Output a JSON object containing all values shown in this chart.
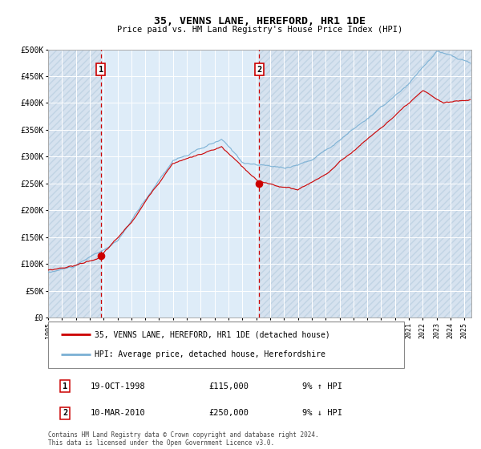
{
  "title": "35, VENNS LANE, HEREFORD, HR1 1DE",
  "subtitle": "Price paid vs. HM Land Registry's House Price Index (HPI)",
  "xmin_year": 1995.0,
  "xmax_year": 2025.5,
  "ymin": 0,
  "ymax": 500000,
  "yticks": [
    0,
    50000,
    100000,
    150000,
    200000,
    250000,
    300000,
    350000,
    400000,
    450000,
    500000
  ],
  "ytick_labels": [
    "£0",
    "£50K",
    "£100K",
    "£150K",
    "£200K",
    "£250K",
    "£300K",
    "£350K",
    "£400K",
    "£450K",
    "£500K"
  ],
  "xtick_years": [
    1995,
    1996,
    1997,
    1998,
    1999,
    2000,
    2001,
    2002,
    2003,
    2004,
    2005,
    2006,
    2007,
    2008,
    2009,
    2010,
    2011,
    2012,
    2013,
    2014,
    2015,
    2016,
    2017,
    2018,
    2019,
    2020,
    2021,
    2022,
    2023,
    2024,
    2025
  ],
  "vline1_x": 1998.8,
  "vline2_x": 2010.2,
  "point1_x": 1998.8,
  "point1_y": 115000,
  "point2_x": 2010.2,
  "point2_y": 250000,
  "legend_line1": "35, VENNS LANE, HEREFORD, HR1 1DE (detached house)",
  "legend_line2": "HPI: Average price, detached house, Herefordshire",
  "table_row1_num": "1",
  "table_row1_date": "19-OCT-1998",
  "table_row1_price": "£115,000",
  "table_row1_hpi": "9% ↑ HPI",
  "table_row2_num": "2",
  "table_row2_date": "10-MAR-2010",
  "table_row2_price": "£250,000",
  "table_row2_hpi": "9% ↓ HPI",
  "footer": "Contains HM Land Registry data © Crown copyright and database right 2024.\nThis data is licensed under the Open Government Licence v3.0.",
  "red_line_color": "#cc0000",
  "blue_line_color": "#7ab0d4",
  "point_color": "#cc0000",
  "vline_color": "#cc0000",
  "background_color": "#ffffff"
}
